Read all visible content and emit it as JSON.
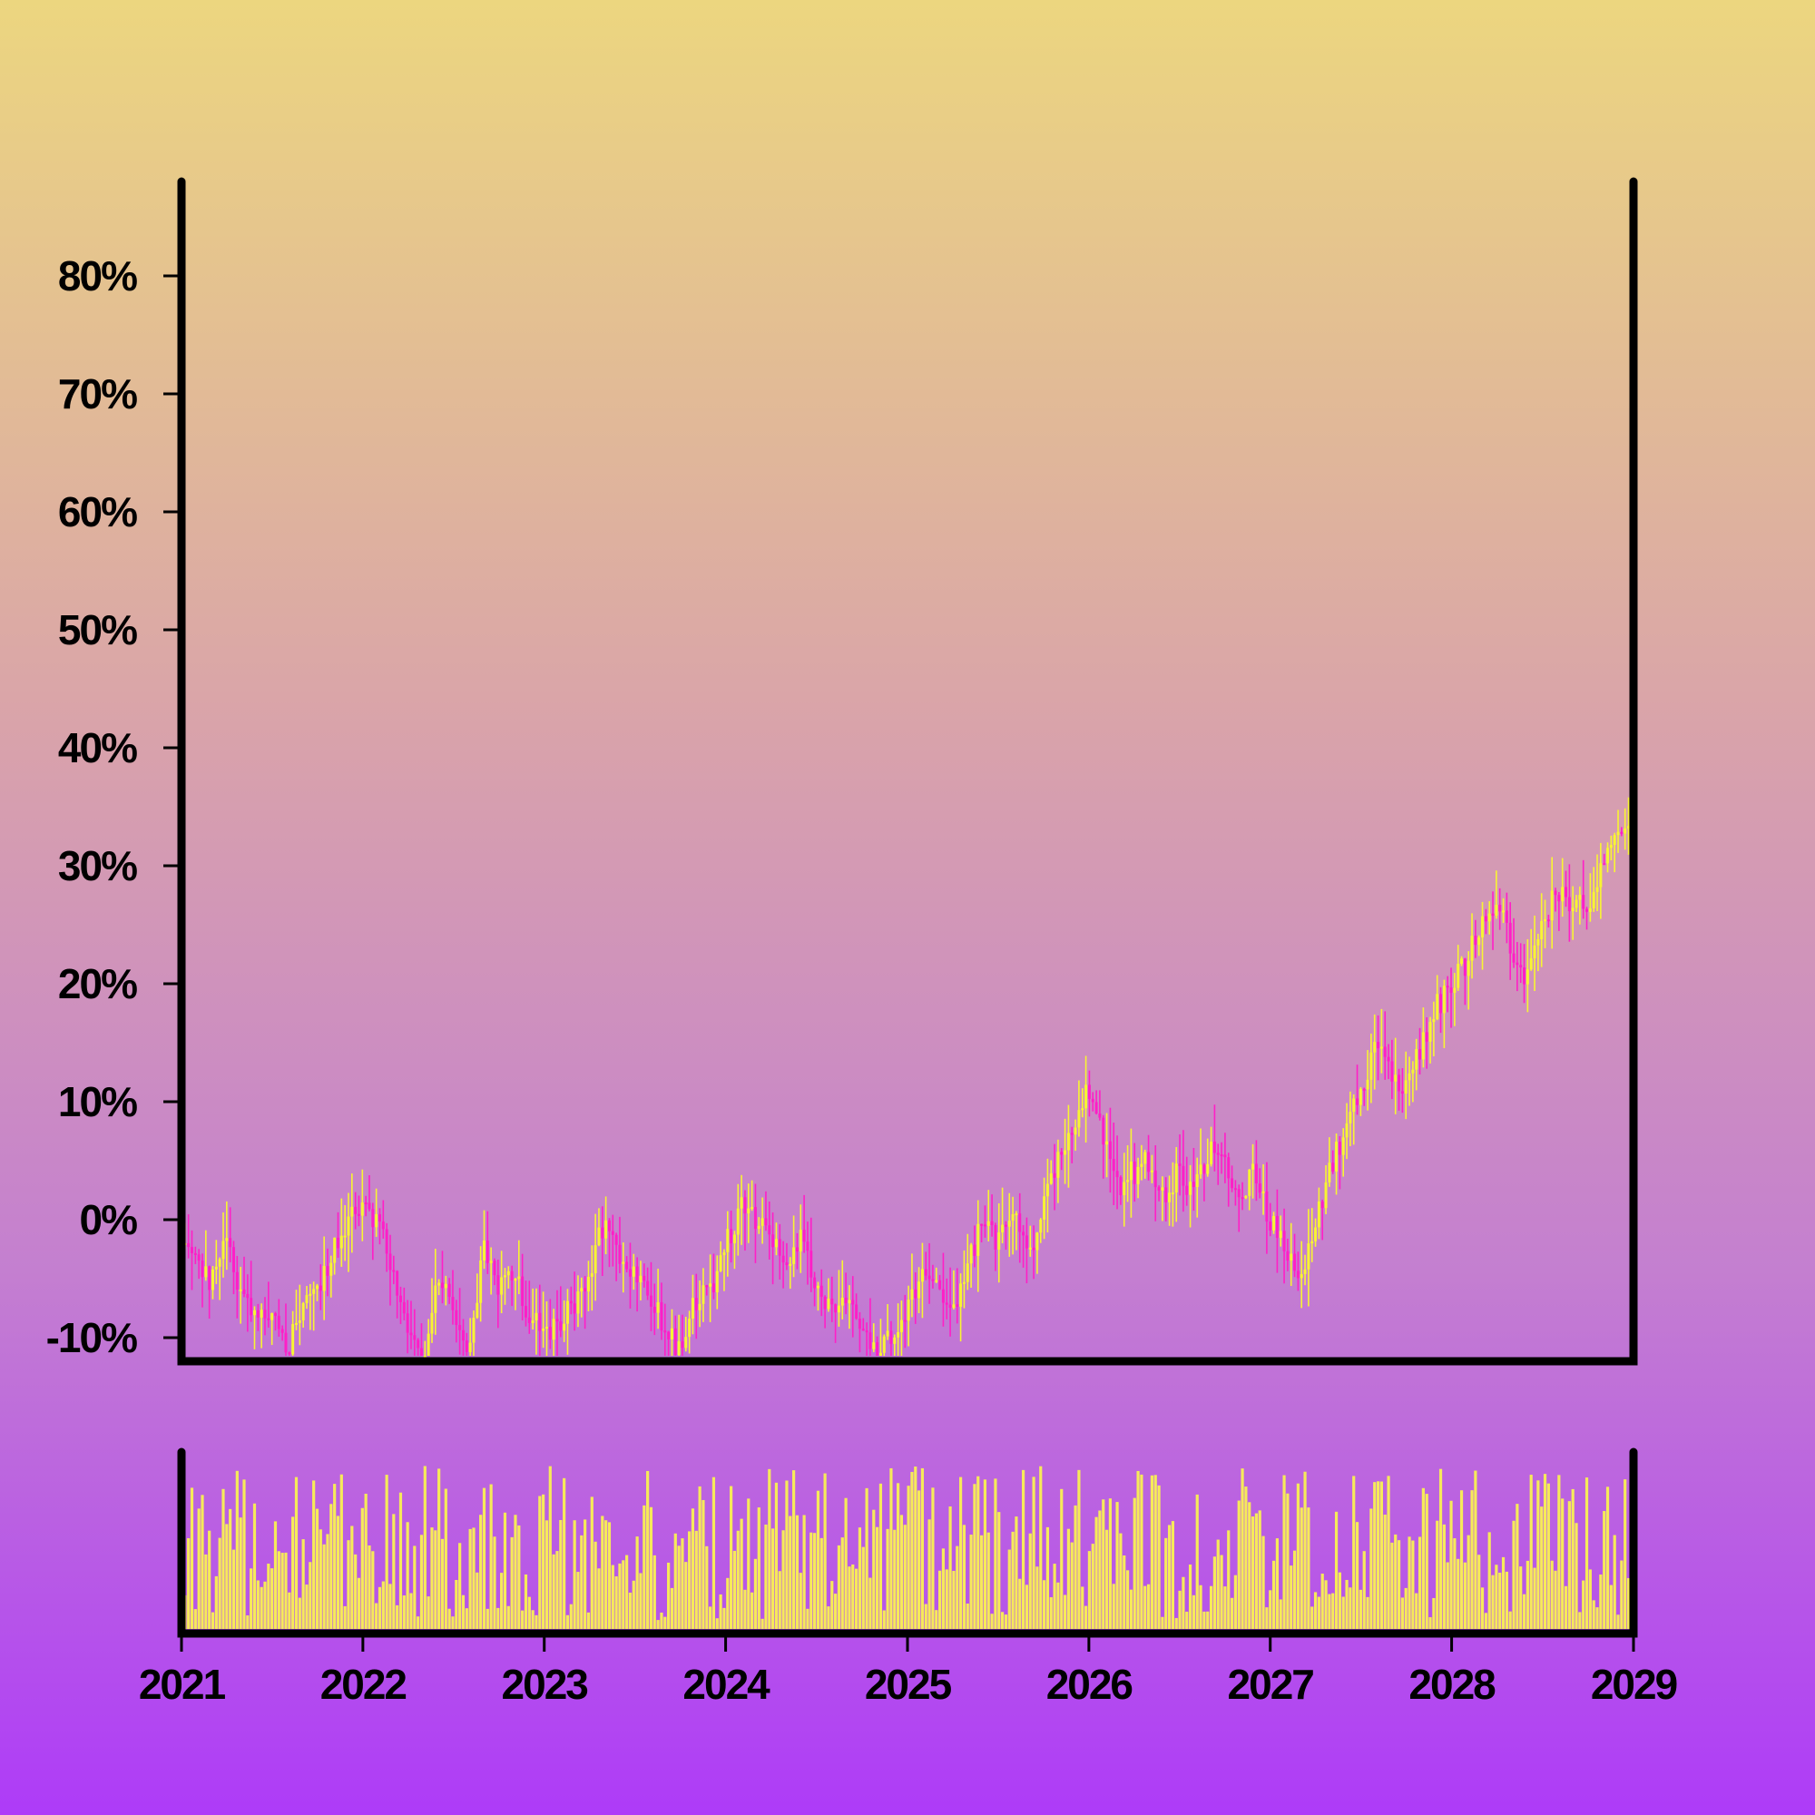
{
  "colors": {
    "up": "#f8f532",
    "down": "#ff1fc7",
    "volume": "#f6ea5a",
    "axis": "#000000"
  },
  "chart_data": {
    "type": "candlestick",
    "title": "",
    "xlabel": "",
    "ylabel": "",
    "grid": false,
    "legend": "none",
    "ylim": [
      -12,
      88
    ],
    "y_ticks": [
      -10,
      0,
      10,
      20,
      30,
      40,
      50,
      60,
      70,
      80
    ],
    "y_tick_labels": [
      "-10%",
      "0%",
      "10%",
      "20%",
      "30%",
      "40%",
      "50%",
      "60%",
      "70%",
      "80%"
    ],
    "x_range": [
      "2021-01-01",
      "2029-01-01"
    ],
    "x_tick_labels": [
      "2021",
      "2022",
      "2023",
      "2024",
      "2025",
      "2026",
      "2027",
      "2028",
      "2029"
    ],
    "candle_interval_days": 7,
    "close_series": [
      [
        "2021-01-01",
        -2
      ],
      [
        "2021-02-01",
        -4
      ],
      [
        "2021-03-01",
        -5
      ],
      [
        "2021-04-01",
        -2
      ],
      [
        "2021-05-01",
        -7
      ],
      [
        "2021-06-01",
        -8
      ],
      [
        "2021-07-01",
        -8
      ],
      [
        "2021-08-01",
        -11
      ],
      [
        "2021-09-01",
        -7
      ],
      [
        "2021-10-01",
        -6
      ],
      [
        "2021-11-01",
        -3
      ],
      [
        "2021-12-01",
        0
      ],
      [
        "2022-01-01",
        1
      ],
      [
        "2022-02-01",
        0
      ],
      [
        "2022-03-01",
        -5
      ],
      [
        "2022-04-01",
        -9
      ],
      [
        "2022-05-01",
        -12
      ],
      [
        "2022-06-01",
        -4
      ],
      [
        "2022-07-01",
        -8
      ],
      [
        "2022-08-01",
        -12
      ],
      [
        "2022-09-01",
        -2
      ],
      [
        "2022-10-01",
        -6
      ],
      [
        "2022-11-01",
        -4
      ],
      [
        "2022-12-01",
        -8
      ],
      [
        "2023-01-01",
        -10
      ],
      [
        "2023-02-01",
        -9
      ],
      [
        "2023-03-01",
        -7
      ],
      [
        "2023-04-01",
        -5
      ],
      [
        "2023-05-01",
        0
      ],
      [
        "2023-06-01",
        -4
      ],
      [
        "2023-07-01",
        -5
      ],
      [
        "2023-08-01",
        -6
      ],
      [
        "2023-09-01",
        -9
      ],
      [
        "2023-10-01",
        -11
      ],
      [
        "2023-11-01",
        -7
      ],
      [
        "2023-12-01",
        -6
      ],
      [
        "2024-01-01",
        -2
      ],
      [
        "2024-02-01",
        1
      ],
      [
        "2024-03-01",
        0
      ],
      [
        "2024-04-01",
        -2
      ],
      [
        "2024-05-01",
        -4
      ],
      [
        "2024-06-01",
        -1
      ],
      [
        "2024-07-01",
        -6
      ],
      [
        "2024-08-01",
        -8
      ],
      [
        "2024-09-01",
        -6
      ],
      [
        "2024-10-01",
        -10
      ],
      [
        "2024-11-01",
        -11
      ],
      [
        "2024-12-01",
        -10
      ],
      [
        "2025-01-01",
        -8
      ],
      [
        "2025-02-01",
        -4
      ],
      [
        "2025-03-01",
        -5
      ],
      [
        "2025-04-01",
        -8
      ],
      [
        "2025-05-01",
        -4
      ],
      [
        "2025-06-01",
        0
      ],
      [
        "2025-07-01",
        -2
      ],
      [
        "2025-08-01",
        1
      ],
      [
        "2025-09-01",
        -3
      ],
      [
        "2025-10-01",
        1
      ],
      [
        "2025-11-01",
        5
      ],
      [
        "2025-12-01",
        8
      ],
      [
        "2026-01-01",
        11
      ],
      [
        "2026-02-01",
        7
      ],
      [
        "2026-03-01",
        3
      ],
      [
        "2026-04-01",
        4
      ],
      [
        "2026-05-01",
        5
      ],
      [
        "2026-06-01",
        2
      ],
      [
        "2026-07-01",
        4
      ],
      [
        "2026-08-01",
        2
      ],
      [
        "2026-09-01",
        6
      ],
      [
        "2026-10-01",
        5
      ],
      [
        "2026-11-01",
        2
      ],
      [
        "2026-12-01",
        4
      ],
      [
        "2027-01-01",
        0
      ],
      [
        "2027-02-01",
        -3
      ],
      [
        "2027-03-01",
        -5
      ],
      [
        "2027-04-01",
        0
      ],
      [
        "2027-05-01",
        4
      ],
      [
        "2027-06-01",
        8
      ],
      [
        "2027-07-01",
        11
      ],
      [
        "2027-08-01",
        15
      ],
      [
        "2027-09-01",
        12
      ],
      [
        "2027-10-01",
        11
      ],
      [
        "2027-11-01",
        15
      ],
      [
        "2027-12-01",
        18
      ],
      [
        "2028-01-01",
        20
      ],
      [
        "2028-02-01",
        22
      ],
      [
        "2028-03-01",
        25
      ],
      [
        "2028-04-01",
        27
      ],
      [
        "2028-05-01",
        23
      ],
      [
        "2028-06-01",
        20
      ],
      [
        "2028-07-01",
        25
      ],
      [
        "2028-08-01",
        28
      ],
      [
        "2028-09-01",
        27
      ],
      [
        "2028-10-01",
        27
      ],
      [
        "2028-11-01",
        30
      ],
      [
        "2028-12-01",
        32
      ],
      [
        "2029-01-01",
        33
      ]
    ],
    "volume_panel": {
      "shown": true,
      "axis_labels": false,
      "relative_level_range": [
        0,
        1
      ]
    }
  }
}
